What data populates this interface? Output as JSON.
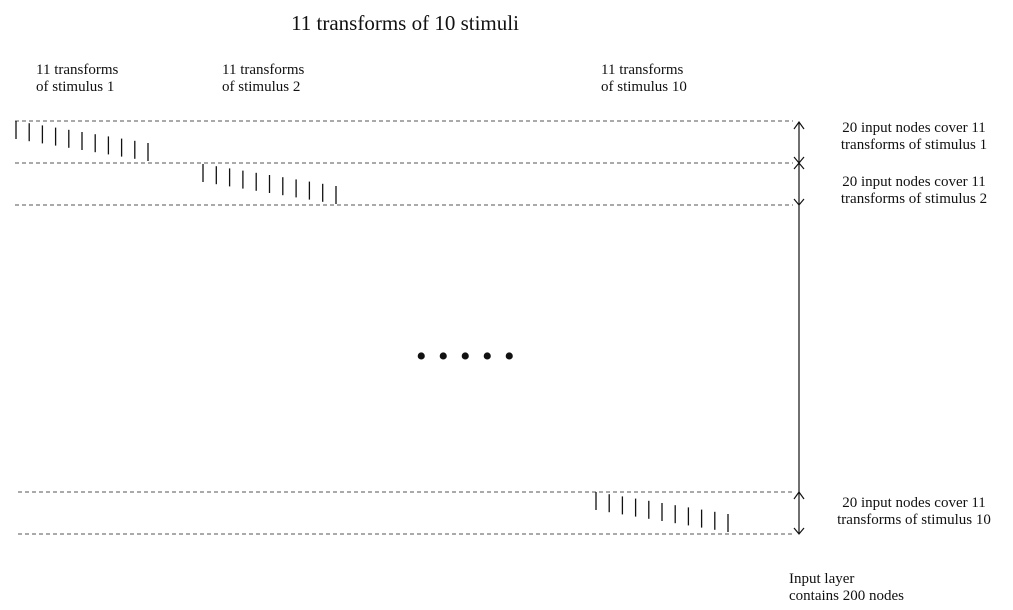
{
  "title": "11 transforms of 10 stimuli",
  "column_labels": [
    "11 transforms\nof stimulus 1",
    "11 transforms\nof stimulus 2",
    "11 transforms\nof stimulus 10"
  ],
  "group_labels": [
    "20 input nodes cover 11\ntransforms of stimulus 1",
    "20 input nodes cover 11\ntransforms of stimulus 2",
    "20 input nodes cover 11\ntransforms of stimulus 10"
  ],
  "ellipsis": "• • • • •",
  "footer_label": "Input layer\ncontains 200 nodes",
  "colors": {
    "ink": "#111111",
    "dash": "#555555"
  }
}
